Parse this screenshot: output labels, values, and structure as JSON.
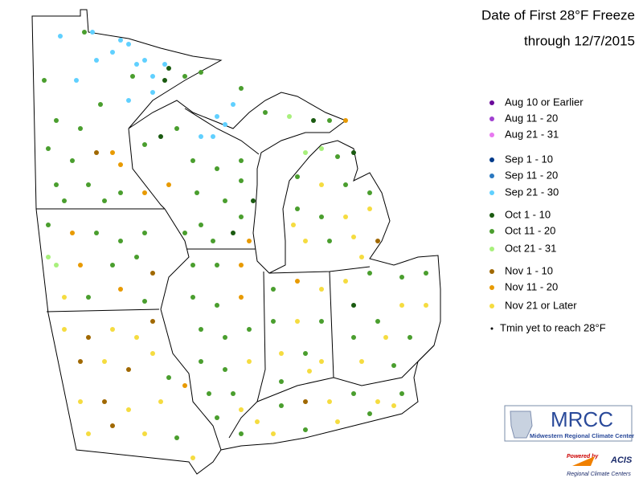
{
  "title": "Date of First 28°F Freeze",
  "subtitle": "through 12/7/2015",
  "legend": [
    {
      "label": "Aug 10 or Earlier",
      "color": "#6a0a9a"
    },
    {
      "label": "Aug 11 - 20",
      "color": "#a040d0"
    },
    {
      "label": "Aug 21 - 31",
      "color": "#e878f0"
    },
    {
      "label": "Sep 1 - 10",
      "color": "#003a8a"
    },
    {
      "label": "Sep 11 - 20",
      "color": "#2a78c0"
    },
    {
      "label": "Sep 21 - 30",
      "color": "#60d0ff"
    },
    {
      "label": "Oct 1 - 10",
      "color": "#1a5a10"
    },
    {
      "label": "Oct 11 - 20",
      "color": "#4a9e2e"
    },
    {
      "label": "Oct 21 - 31",
      "color": "#a8f07c"
    },
    {
      "label": "Nov 1 - 10",
      "color": "#a06800"
    },
    {
      "label": "Nov 11 - 20",
      "color": "#e89a00"
    },
    {
      "label": "Nov 21 or Later",
      "color": "#f5dc40"
    }
  ],
  "legend_note": "Tmin yet to reach 28°F",
  "station_categories": [
    5,
    5,
    5,
    5,
    5,
    5,
    5,
    5,
    5,
    5,
    5,
    6,
    6,
    7,
    7,
    7,
    7,
    5,
    7,
    5,
    7,
    7,
    7,
    7,
    7,
    9,
    10,
    10,
    7,
    7,
    7,
    10,
    7,
    7,
    7,
    6,
    7,
    5,
    5,
    5,
    7,
    7,
    7,
    10,
    7,
    7,
    7,
    7,
    6,
    10,
    7,
    7,
    7,
    6,
    7,
    5,
    7,
    8,
    6,
    7,
    10,
    5,
    8,
    8,
    7,
    6,
    7,
    11,
    7,
    7,
    7,
    7,
    11,
    11,
    11,
    7,
    11,
    9,
    11,
    11,
    7,
    10,
    7,
    7,
    7,
    8,
    10,
    7,
    7,
    9,
    11,
    7,
    10,
    7,
    8,
    11,
    9,
    11,
    11,
    9,
    9,
    11,
    9,
    11,
    7,
    11,
    9,
    11,
    11,
    10,
    11,
    9,
    11,
    7,
    11,
    7,
    7,
    10,
    7,
    7,
    10,
    7,
    7,
    7,
    7,
    7,
    11,
    7,
    7,
    7,
    11,
    7,
    10,
    11,
    7,
    11,
    7,
    11,
    7,
    11,
    7,
    11,
    11,
    7,
    7,
    7,
    6,
    7,
    11,
    11,
    7,
    11,
    7,
    11,
    7,
    11,
    7,
    9,
    11,
    7,
    11,
    7,
    11,
    7,
    11,
    7,
    7,
    11
  ],
  "logos": {
    "mrcc": "MRCC",
    "mrcc_name": "Midwestern Regional Climate Center",
    "powered_by": "Powered by",
    "acis": "ACIS",
    "rcc": "Regional Climate Centers"
  }
}
